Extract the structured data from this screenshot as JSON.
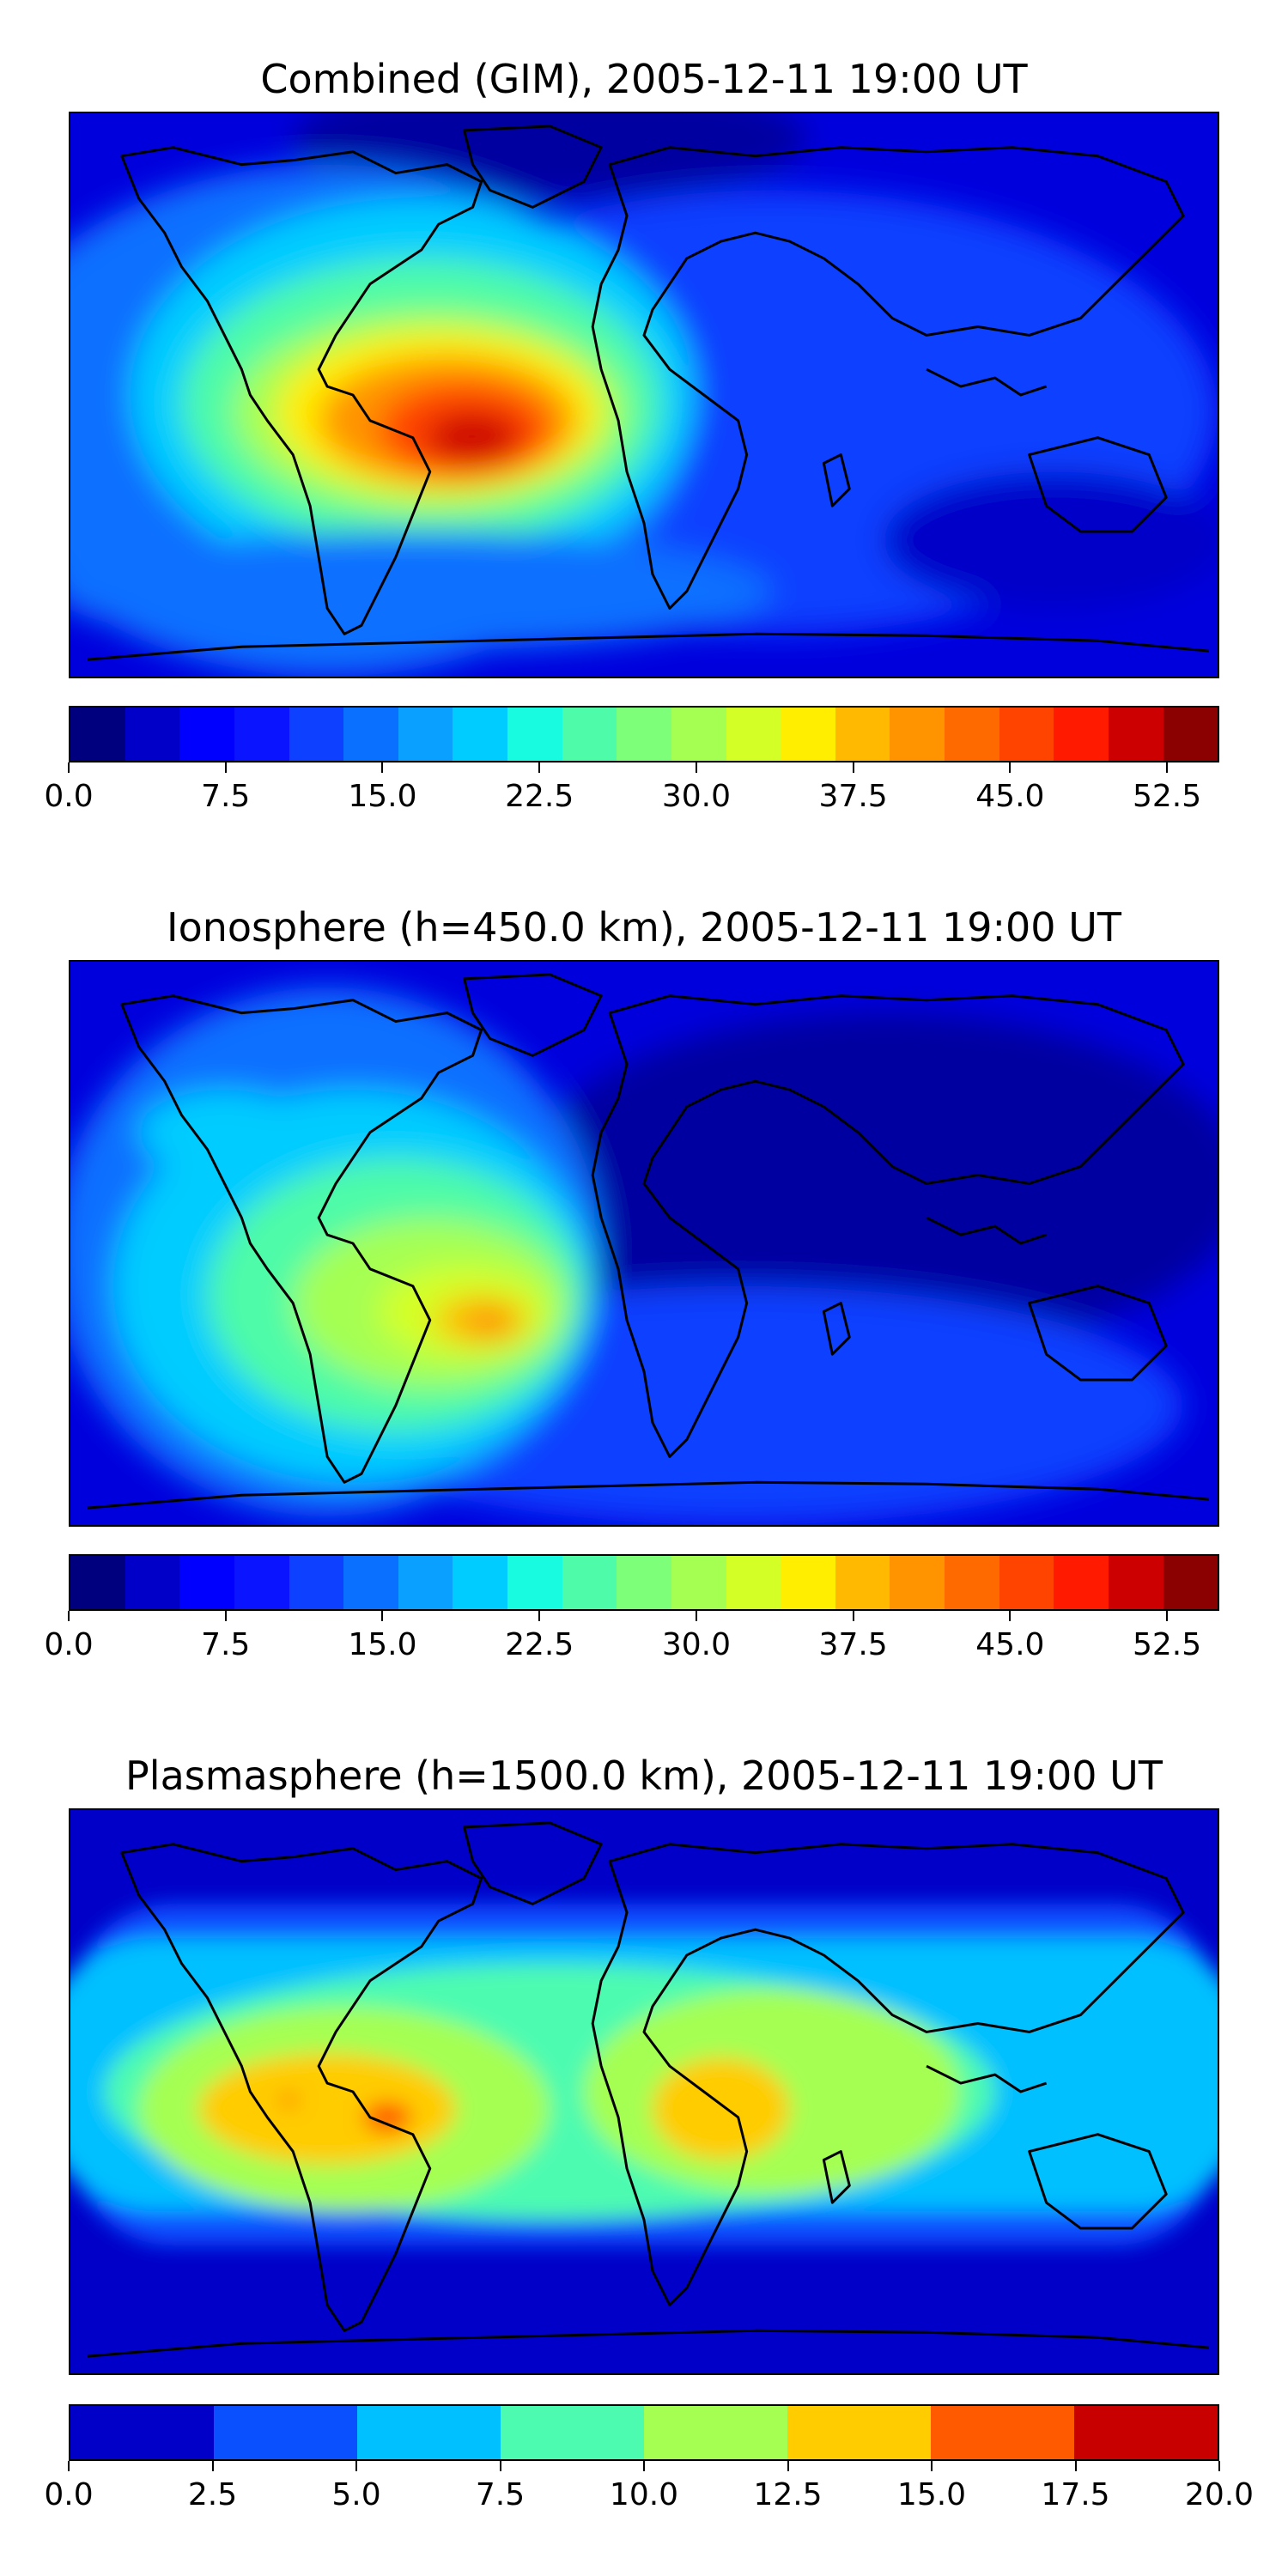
{
  "panels": [
    {
      "title": "Combined (GIM), 2005-12-11 19:00 UT",
      "colorbar": {
        "colors": [
          "#00007f",
          "#0000c8",
          "#0000ff",
          "#0a14ff",
          "#0d40ff",
          "#0a70ff",
          "#0aa0ff",
          "#00ccff",
          "#19fbe0",
          "#4dfba8",
          "#7dff79",
          "#a5ff52",
          "#d4ff26",
          "#ffee00",
          "#ffb900",
          "#ff9400",
          "#ff6a00",
          "#ff4400",
          "#ff1a00",
          "#cc0000",
          "#8b0000"
        ],
        "ticks": [
          "0.0",
          "7.5",
          "15.0",
          "22.5",
          "30.0",
          "37.5",
          "45.0",
          "52.5"
        ],
        "range": [
          0,
          55
        ],
        "tick_values": [
          0,
          7.5,
          15,
          22.5,
          30,
          37.5,
          45,
          52.5
        ]
      }
    },
    {
      "title": "Ionosphere  (h=450.0 km), 2005-12-11 19:00 UT",
      "colorbar": {
        "colors": [
          "#00007f",
          "#0000c8",
          "#0000ff",
          "#0a14ff",
          "#0d40ff",
          "#0a70ff",
          "#0aa0ff",
          "#00ccff",
          "#19fbe0",
          "#4dfba8",
          "#7dff79",
          "#a5ff52",
          "#d4ff26",
          "#ffee00",
          "#ffb900",
          "#ff9400",
          "#ff6a00",
          "#ff4400",
          "#ff1a00",
          "#cc0000",
          "#8b0000"
        ],
        "ticks": [
          "0.0",
          "7.5",
          "15.0",
          "22.5",
          "30.0",
          "37.5",
          "45.0",
          "52.5"
        ],
        "range": [
          0,
          55
        ],
        "tick_values": [
          0,
          7.5,
          15,
          22.5,
          30,
          37.5,
          45,
          52.5
        ]
      }
    },
    {
      "title": "Plasmasphere (h=1500.0 km), 2005-12-11 19:00 UT",
      "colorbar": {
        "colors": [
          "#0000c8",
          "#0a50ff",
          "#00c0ff",
          "#4dfbb0",
          "#a5ff52",
          "#ffcc00",
          "#ff5a00",
          "#c80000"
        ],
        "ticks": [
          "0.0",
          "2.5",
          "5.0",
          "7.5",
          "10.0",
          "12.5",
          "15.0",
          "17.5",
          "20.0"
        ],
        "range": [
          0,
          20
        ],
        "tick_values": [
          0,
          2.5,
          5,
          7.5,
          10,
          12.5,
          15,
          17.5,
          20
        ]
      }
    }
  ]
}
